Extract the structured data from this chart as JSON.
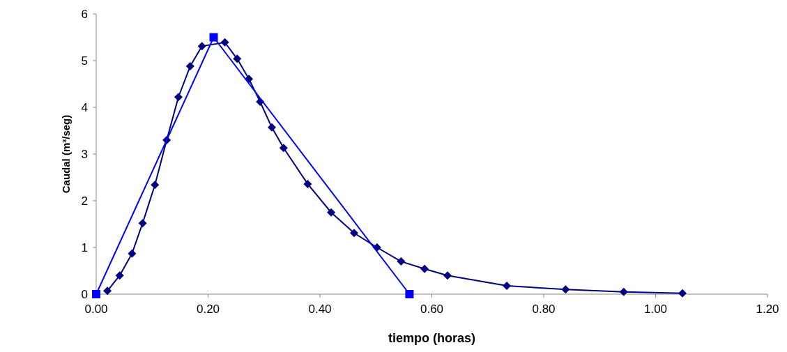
{
  "chart_data": {
    "type": "line",
    "xlabel": "tiempo (horas)",
    "ylabel": "Caudal (m³/seg)",
    "xlim": [
      0,
      1.2
    ],
    "xticks": [
      {
        "value": 0,
        "label": "0.00"
      },
      {
        "value": 0.2,
        "label": "0.20"
      },
      {
        "value": 0.4,
        "label": "0.40"
      },
      {
        "value": 0.6,
        "label": "0.60"
      },
      {
        "value": 0.8,
        "label": "0.80"
      },
      {
        "value": 1,
        "label": "1.00"
      },
      {
        "value": 1.2,
        "label": "1.20"
      }
    ],
    "ylim": [
      0,
      6
    ],
    "yticks": [
      0,
      1,
      2,
      3,
      4,
      5,
      6
    ],
    "grid": false,
    "line_style": "solid",
    "series": [
      {
        "color": "#000080",
        "marker": "diamond",
        "x": [
          0.02,
          0.042,
          0.064,
          0.083,
          0.105,
          0.126,
          0.147,
          0.168,
          0.189,
          0.21,
          0.23,
          0.252,
          0.273,
          0.293,
          0.314,
          0.335,
          0.378,
          0.42,
          0.461,
          0.502,
          0.545,
          0.587,
          0.628,
          0.734,
          0.839,
          0.943,
          1.048
        ],
        "values": [
          0.07,
          0.4,
          0.87,
          1.52,
          2.34,
          3.3,
          4.22,
          4.88,
          5.31,
          null,
          5.39,
          5.04,
          4.61,
          4.12,
          3.57,
          3.13,
          2.36,
          1.75,
          1.31,
          1.0,
          0.7,
          0.54,
          0.4,
          0.18,
          0.1,
          0.05,
          0.02
        ]
      },
      {
        "color": "#0000ff",
        "marker": "square",
        "x": [
          0,
          0.21,
          0.56
        ],
        "values": [
          0,
          5.5,
          0
        ]
      }
    ]
  }
}
